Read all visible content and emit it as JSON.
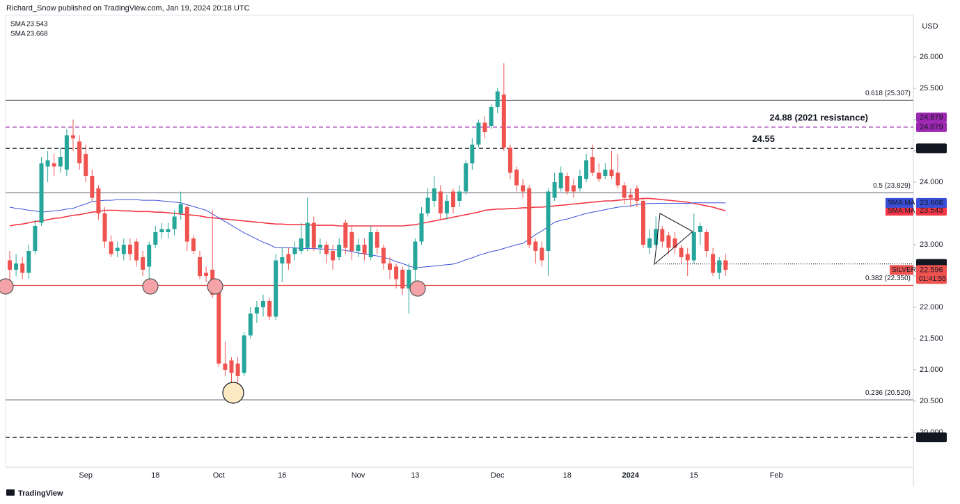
{
  "header": "Richard_Snow published on TradingView.com, Jan 19, 2024 20:18 UTC",
  "footer": "TradingView",
  "chart_data": {
    "type": "candlestick",
    "currency": "USD",
    "symbol": "SILVER",
    "countdown": "01:41:55",
    "categories": [
      null,
      null,
      null,
      null,
      null,
      null,
      null,
      null,
      null,
      null,
      null,
      null,
      "Sep",
      null,
      null,
      null,
      null,
      null,
      null,
      null,
      null,
      null,
      null,
      "18",
      null,
      null,
      null,
      null,
      null,
      null,
      null,
      null,
      null,
      "Oct",
      null,
      null,
      null,
      null,
      null,
      null,
      null,
      null,
      null,
      "16",
      null,
      null,
      null,
      null,
      null,
      null,
      null,
      null,
      null,
      null,
      null,
      "Nov",
      null,
      null,
      null,
      null,
      null,
      null,
      null,
      null,
      "13",
      null,
      null,
      null,
      null,
      null,
      null,
      null,
      null,
      null,
      null,
      null,
      null,
      "Dec",
      null,
      null,
      null,
      null,
      null,
      null,
      null,
      null,
      null,
      null,
      "18",
      null,
      null,
      null,
      null,
      null,
      null,
      null,
      null,
      null,
      "2024",
      null,
      null,
      null,
      null,
      null,
      null,
      null,
      null,
      null,
      "15",
      null,
      null,
      null,
      null,
      null,
      null,
      null,
      null,
      null,
      null,
      null,
      null,
      "Feb"
    ],
    "candles": {
      "up_color": "#26a69a",
      "down_color": "#ef5350",
      "open": [
        22.75,
        22.6,
        22.7,
        22.55,
        22.9,
        23.35,
        24.25,
        24.3,
        24.25,
        24.2,
        24.75,
        24.65,
        24.45,
        24.1,
        23.9,
        23.5,
        23.05,
        22.9,
        22.85,
        23.0,
        23.05,
        22.8,
        22.65,
        23.0,
        23.2,
        23.2,
        23.25,
        23.5,
        23.6,
        23.1,
        22.8,
        22.55,
        22.6,
        22.25,
        21.1,
        21.15,
        21.1,
        20.95,
        21.55,
        21.9,
        22.0,
        22.1,
        21.85,
        22.7,
        22.85,
        22.85,
        22.9,
        22.95,
        23.35,
        22.95,
        23.0,
        22.9,
        22.8,
        23.35,
        23.2,
        22.9,
        23.0,
        22.8,
        23.2,
        22.95,
        22.7,
        22.65,
        22.6,
        22.3,
        22.6,
        23.05,
        23.5,
        23.7,
        23.85,
        23.5,
        23.85,
        23.7,
        23.85,
        24.3,
        24.6,
        24.95,
        24.9,
        25.2,
        25.4,
        24.55,
        24.2,
        23.95,
        23.9,
        23.05,
        22.95,
        22.9,
        23.75,
        23.9,
        24.1,
        23.95,
        23.9,
        24.05,
        24.4,
        24.15,
        24.1,
        24.2,
        24.15,
        23.95,
        23.8,
        23.9,
        23.7,
        22.95,
        23.0,
        23.25,
        23.15,
        23.1,
        22.95,
        22.85,
        22.75,
        23.2,
        23.2,
        22.85,
        22.55,
        22.75,
        null,
        null,
        null,
        null,
        null,
        null,
        null,
        null
      ],
      "high": [
        22.9,
        22.85,
        22.8,
        23.0,
        23.4,
        24.4,
        24.5,
        24.45,
        24.55,
        24.85,
        25.0,
        24.75,
        24.6,
        24.2,
        23.95,
        23.6,
        23.15,
        23.05,
        23.1,
        23.1,
        23.1,
        22.9,
        23.05,
        23.3,
        23.35,
        23.35,
        23.55,
        23.85,
        23.65,
        23.15,
        22.9,
        22.65,
        23.55,
        22.3,
        21.45,
        21.2,
        21.2,
        21.6,
        22.0,
        22.1,
        22.2,
        22.15,
        22.85,
        22.95,
        22.95,
        23.05,
        23.35,
        23.75,
        23.45,
        23.1,
        23.05,
        23.0,
        23.1,
        23.4,
        23.3,
        23.1,
        23.1,
        23.3,
        23.25,
        23.0,
        22.8,
        22.7,
        22.65,
        22.7,
        23.1,
        23.6,
        23.9,
        24.1,
        23.95,
        23.8,
        23.9,
        23.95,
        24.35,
        24.7,
        25.0,
        25.05,
        25.25,
        25.5,
        25.9,
        24.6,
        24.25,
        24.05,
        23.95,
        23.1,
        23.05,
        23.9,
        24.15,
        24.25,
        24.15,
        24.05,
        24.2,
        24.45,
        24.6,
        24.3,
        24.3,
        24.5,
        24.45,
        24.0,
        23.9,
        23.95,
        23.75,
        23.25,
        23.45,
        23.3,
        23.2,
        23.2,
        23.0,
        22.95,
        23.5,
        23.35,
        23.25,
        22.95,
        22.8,
        22.85,
        null,
        null,
        null,
        null,
        null,
        null,
        null,
        null
      ],
      "low": [
        22.35,
        22.5,
        22.45,
        22.45,
        22.85,
        23.3,
        24.0,
        24.1,
        24.15,
        24.1,
        24.5,
        24.2,
        24.0,
        23.7,
        23.4,
        22.95,
        22.8,
        22.8,
        22.75,
        22.75,
        22.65,
        22.5,
        22.35,
        22.95,
        23.1,
        23.1,
        23.15,
        23.4,
        22.9,
        22.85,
        22.45,
        22.4,
        22.15,
        21.05,
        20.9,
        20.65,
        20.8,
        20.9,
        21.5,
        21.75,
        21.85,
        21.8,
        21.8,
        22.4,
        22.6,
        22.75,
        22.85,
        22.9,
        22.9,
        22.85,
        22.7,
        22.6,
        22.75,
        22.85,
        22.75,
        22.8,
        22.75,
        22.75,
        22.85,
        22.6,
        22.45,
        22.3,
        22.2,
        21.9,
        22.3,
        23.0,
        23.45,
        23.6,
        23.4,
        23.4,
        23.5,
        23.6,
        23.8,
        24.2,
        24.55,
        24.7,
        24.85,
        25.1,
        24.5,
        24.05,
        23.85,
        23.75,
        22.95,
        22.7,
        22.65,
        22.5,
        23.7,
        23.85,
        23.8,
        23.75,
        23.85,
        24.0,
        24.1,
        24.0,
        24.05,
        24.05,
        23.9,
        23.65,
        23.6,
        23.6,
        22.95,
        22.85,
        22.95,
        22.95,
        22.85,
        22.85,
        22.7,
        22.5,
        22.7,
        23.0,
        22.8,
        22.5,
        22.45,
        22.5,
        null,
        null,
        null,
        null,
        null,
        null,
        null,
        null
      ],
      "close": [
        22.6,
        22.7,
        22.55,
        22.9,
        23.3,
        24.3,
        24.35,
        24.25,
        24.4,
        24.75,
        24.7,
        24.3,
        24.1,
        23.75,
        23.5,
        23.05,
        22.85,
        22.95,
        23.0,
        22.85,
        22.75,
        22.6,
        23.0,
        23.2,
        23.25,
        23.25,
        23.45,
        23.65,
        23.05,
        22.9,
        22.5,
        22.5,
        22.2,
        21.1,
        21.0,
        20.95,
        20.9,
        21.55,
        21.9,
        22.0,
        22.1,
        21.85,
        22.75,
        22.8,
        22.7,
        22.95,
        23.1,
        23.35,
        22.95,
        23.0,
        22.85,
        22.75,
        23.0,
        22.95,
        22.9,
        23.0,
        22.85,
        23.2,
        22.95,
        22.7,
        22.6,
        22.45,
        22.3,
        22.6,
        23.05,
        23.5,
        23.75,
        23.9,
        23.5,
        23.7,
        23.6,
        23.85,
        24.3,
        24.6,
        24.95,
        24.8,
        25.2,
        25.45,
        24.55,
        24.15,
        23.95,
        23.85,
        23.0,
        22.9,
        22.75,
        23.85,
        24.0,
        24.15,
        23.85,
        23.85,
        24.1,
        24.35,
        24.15,
        24.05,
        24.2,
        24.1,
        23.95,
        23.75,
        23.75,
        23.7,
        23.0,
        23.1,
        23.25,
        23.05,
        22.95,
        22.95,
        22.8,
        22.75,
        23.2,
        23.3,
        22.9,
        22.55,
        22.75,
        22.596,
        null,
        null,
        null,
        null,
        null,
        null,
        null,
        null
      ]
    },
    "series": [
      {
        "name": "SMA",
        "axis_label": "SMA:MA",
        "color": "#f23645",
        "values": [
          23.3,
          23.32,
          23.33,
          23.35,
          23.37,
          23.38,
          23.4,
          23.42,
          23.43,
          23.45,
          23.47,
          23.48,
          23.5,
          23.52,
          23.53,
          23.55,
          23.55,
          23.55,
          23.54,
          23.54,
          23.53,
          23.53,
          23.53,
          23.52,
          23.52,
          23.51,
          23.5,
          23.49,
          23.48,
          23.47,
          23.46,
          23.44,
          23.43,
          23.42,
          23.41,
          23.4,
          23.39,
          23.38,
          23.37,
          23.36,
          23.35,
          23.34,
          23.33,
          23.33,
          23.32,
          23.32,
          23.32,
          23.32,
          23.31,
          23.31,
          23.31,
          23.31,
          23.3,
          23.3,
          23.3,
          23.3,
          23.3,
          23.3,
          23.3,
          23.3,
          23.3,
          23.3,
          23.3,
          23.31,
          23.32,
          23.34,
          23.36,
          23.38,
          23.4,
          23.42,
          23.44,
          23.46,
          23.48,
          23.5,
          23.52,
          23.55,
          23.56,
          23.57,
          23.57,
          23.58,
          23.58,
          23.59,
          23.59,
          23.6,
          23.6,
          23.61,
          23.62,
          23.63,
          23.64,
          23.65,
          23.66,
          23.67,
          23.68,
          23.69,
          23.7,
          23.7,
          23.71,
          23.72,
          23.73,
          23.73,
          23.74,
          23.74,
          23.73,
          23.72,
          23.71,
          23.7,
          23.69,
          23.68,
          23.66,
          23.64,
          23.62,
          23.6,
          23.57,
          23.543,
          null,
          null,
          null,
          null,
          null,
          null,
          null,
          null
        ]
      },
      {
        "name": "SMA",
        "axis_label": "SMA:MA",
        "color": "#3a4fd8",
        "values": [
          23.6,
          23.58,
          23.57,
          23.55,
          23.54,
          23.52,
          23.53,
          23.54,
          23.55,
          23.57,
          23.58,
          23.62,
          23.65,
          23.69,
          23.7,
          23.71,
          23.71,
          23.72,
          23.72,
          23.72,
          23.72,
          23.71,
          23.71,
          23.71,
          23.7,
          23.69,
          23.68,
          23.67,
          23.64,
          23.61,
          23.58,
          23.55,
          23.49,
          23.43,
          23.37,
          23.31,
          23.25,
          23.19,
          23.14,
          23.09,
          23.04,
          23.0,
          22.95,
          22.95,
          22.95,
          22.95,
          22.94,
          22.94,
          22.94,
          22.93,
          22.93,
          22.92,
          22.92,
          22.91,
          22.89,
          22.87,
          22.85,
          22.84,
          22.82,
          22.8,
          22.77,
          22.73,
          22.7,
          22.66,
          22.63,
          22.64,
          22.65,
          22.66,
          22.67,
          22.68,
          22.69,
          22.72,
          22.76,
          22.79,
          22.83,
          22.86,
          22.89,
          22.91,
          22.94,
          22.97,
          23.0,
          23.02,
          23.09,
          23.16,
          23.22,
          23.29,
          23.36,
          23.39,
          23.41,
          23.44,
          23.47,
          23.5,
          23.52,
          23.54,
          23.56,
          23.58,
          23.6,
          23.61,
          23.62,
          23.64,
          23.65,
          23.66,
          23.66,
          23.66,
          23.66,
          23.66,
          23.66,
          23.66,
          23.67,
          23.67,
          23.67,
          23.67,
          23.67,
          23.668,
          null,
          null,
          null,
          null,
          null,
          null,
          null,
          null
        ]
      }
    ],
    "levels": [
      {
        "value": 25.307,
        "label": "0.618 (25.307)",
        "color": "#787b86",
        "style": "solid"
      },
      {
        "value": 24.879,
        "label": "24.88 (2021 resistance)",
        "color": "#9c27b0",
        "style": "dashed",
        "badges": [
          "24.879",
          "24.879"
        ]
      },
      {
        "value": 24.541,
        "label": "24.55",
        "label_color": "#f59d00",
        "color": "#131722",
        "style": "dashed",
        "badges": [
          "24.541"
        ]
      },
      {
        "value": 23.829,
        "label": "0.5 (23.829)",
        "color": "#787b86",
        "style": "solid"
      },
      {
        "value": 22.693,
        "color": "#131722",
        "style": "dotted",
        "badges": [
          "22.693"
        ]
      },
      {
        "value": 22.35,
        "label": "0.382 (22.350)",
        "color": "#e53935",
        "style": "solid"
      },
      {
        "value": 20.52,
        "label": "0.236 (20.520)",
        "color": "#5d606b",
        "style": "solid"
      },
      {
        "value": 19.92,
        "color": "#131722",
        "style": "dashed",
        "badges": [
          "19.920"
        ]
      }
    ],
    "ylim": [
      19.444,
      26.667
    ],
    "yticks": [
      {
        "value": 20,
        "label": "20.000"
      },
      {
        "value": 20.5,
        "label": "20.500"
      },
      {
        "value": 21,
        "label": "21.000"
      },
      {
        "value": 21.5,
        "label": "21.500"
      },
      {
        "value": 22,
        "label": "22.000"
      },
      {
        "value": 22.5,
        "label": "22.500"
      },
      {
        "value": 23,
        "label": "23.000"
      },
      {
        "value": 23.5,
        "label": "23.500"
      },
      {
        "value": 24,
        "label": "24.000"
      },
      {
        "value": 24.5,
        "label": "24.500"
      },
      {
        "value": 25,
        "label": "25.000"
      },
      {
        "value": 25.5,
        "label": "25.500"
      },
      {
        "value": 26,
        "label": "26.000"
      }
    ]
  }
}
